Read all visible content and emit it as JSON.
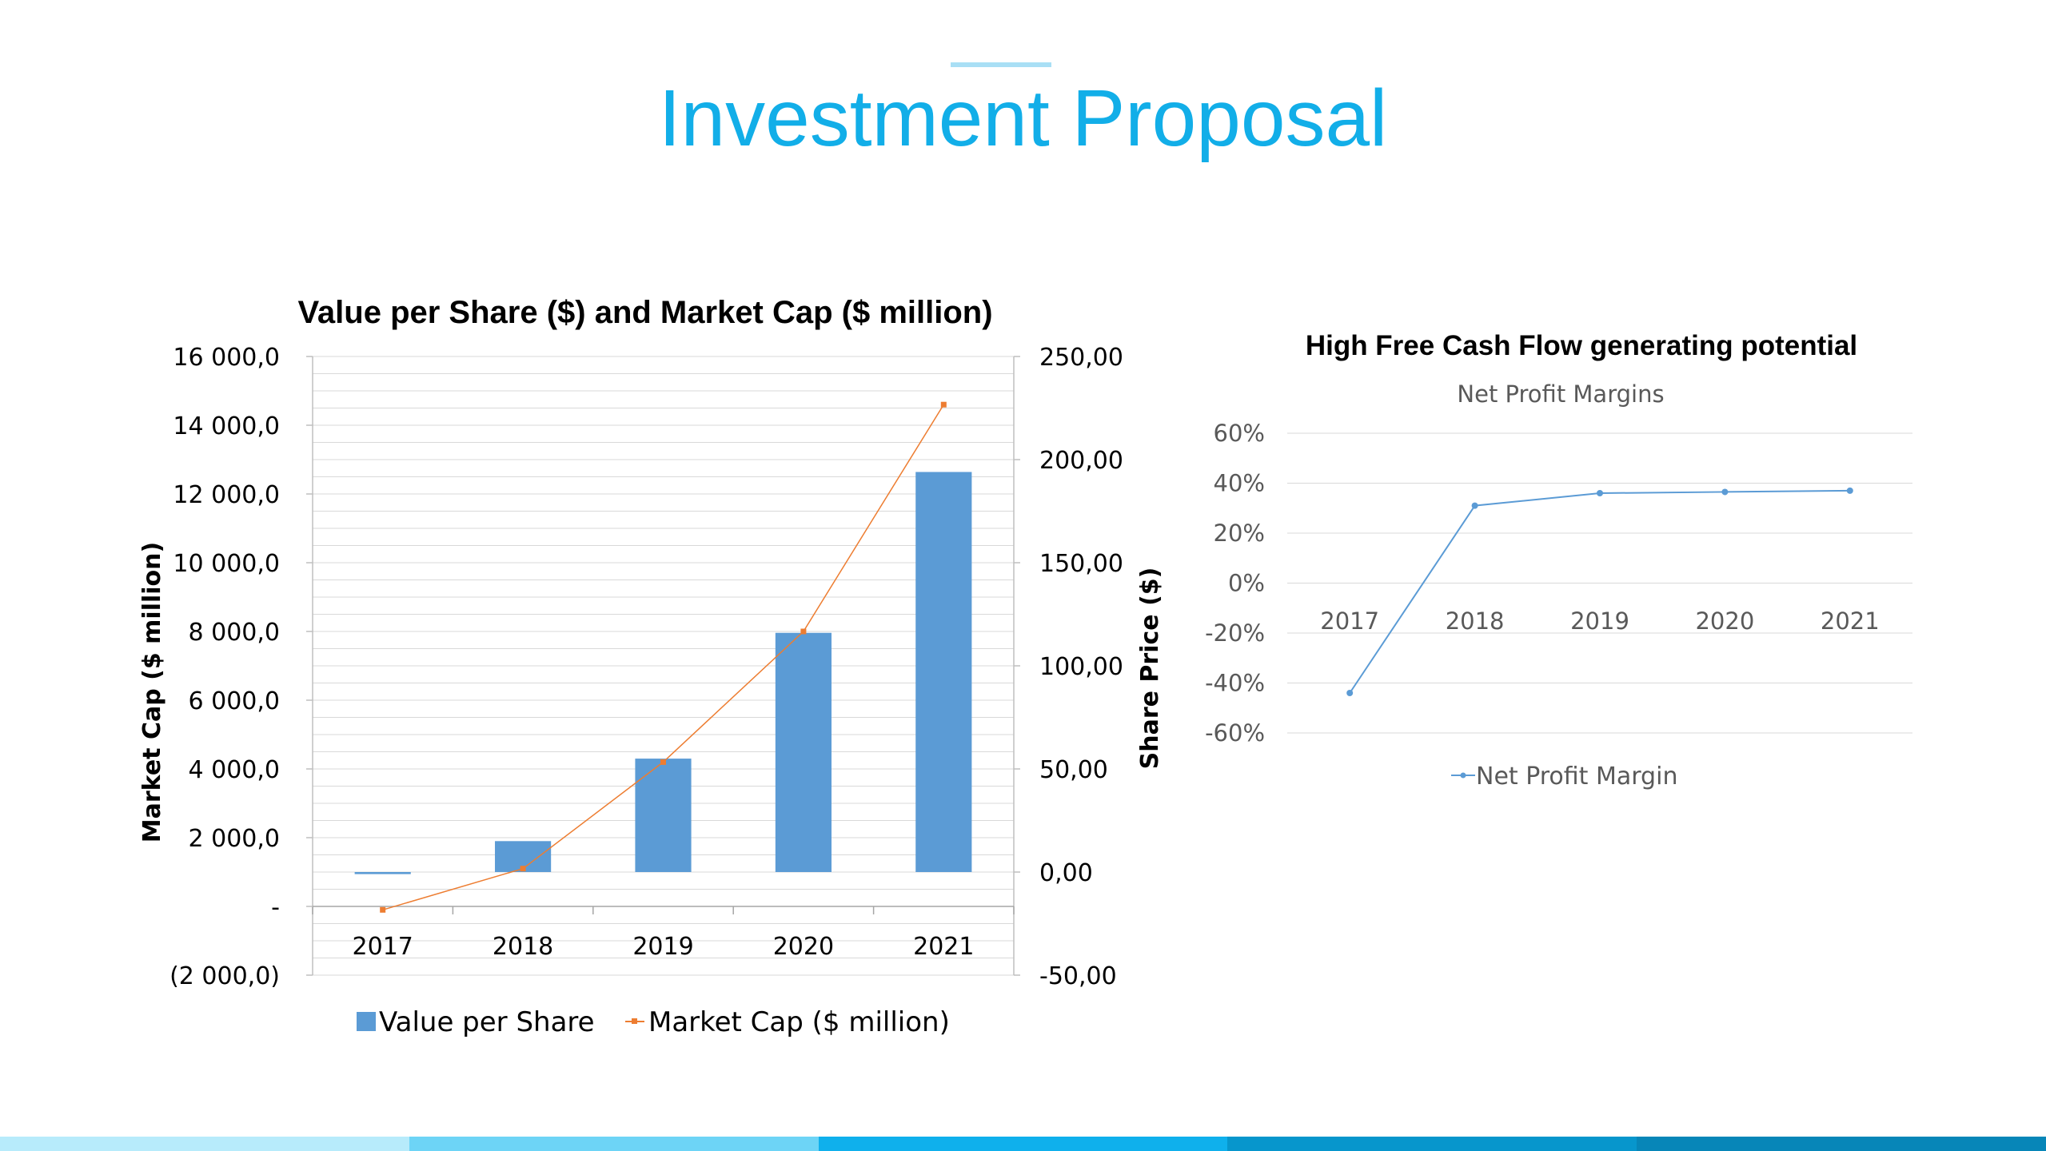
{
  "page": {
    "title": "Investment Proposal"
  },
  "colors": {
    "title": "#12aee8",
    "bar": "#5b9bd5",
    "line_orange": "#ed7d31",
    "line_blue": "#5b9bd5",
    "axis_text": "#000000",
    "axis_text_grey": "#595959",
    "grid": "#d9d9d9",
    "bottom_bar": [
      "#b7ebfb",
      "#6dd4f6",
      "#0fb0ec",
      "#0796cc",
      "#0786b8"
    ]
  },
  "chart_data": [
    {
      "type": "bar+line",
      "title": "Value per Share ($) and Market Cap ($ million)",
      "categories": [
        "2017",
        "2018",
        "2019",
        "2020",
        "2021"
      ],
      "y_left": {
        "label": "Market Cap ($ million)",
        "range": [
          -2000,
          16000
        ],
        "ticks": [
          "16 000,0",
          "14 000,0",
          "12 000,0",
          "10 000,0",
          "8 000,0",
          "6 000,0",
          "4 000,0",
          "2 000,0",
          "-",
          "(2 000,0)"
        ]
      },
      "y_right": {
        "label": "Share Price ($)",
        "range": [
          -50,
          250
        ],
        "ticks": [
          "250,00",
          "200,00",
          "150,00",
          "100,00",
          "50,00",
          "0,00",
          "-50,00"
        ]
      },
      "series": [
        {
          "name": "Value per Share",
          "kind": "bar",
          "axis": "right",
          "values": [
            -1,
            15,
            55,
            116,
            194
          ]
        },
        {
          "name": "Market Cap ($ million)",
          "kind": "line",
          "axis": "left",
          "values": [
            -100,
            1100,
            4200,
            8000,
            14600
          ]
        }
      ],
      "legend": "bottom"
    },
    {
      "type": "line",
      "heading": "High Free Cash Flow generating potential",
      "title": "Net Profit Margins",
      "categories": [
        "2017",
        "2018",
        "2019",
        "2020",
        "2021"
      ],
      "y": {
        "range": [
          -0.6,
          0.6
        ],
        "ticks": [
          "60%",
          "40%",
          "20%",
          "0%",
          "-20%",
          "-40%",
          "-60%"
        ]
      },
      "series": [
        {
          "name": "Net Profit Margin",
          "values": [
            -0.44,
            0.31,
            0.36,
            0.365,
            0.37
          ]
        }
      ],
      "legend": "bottom"
    }
  ]
}
